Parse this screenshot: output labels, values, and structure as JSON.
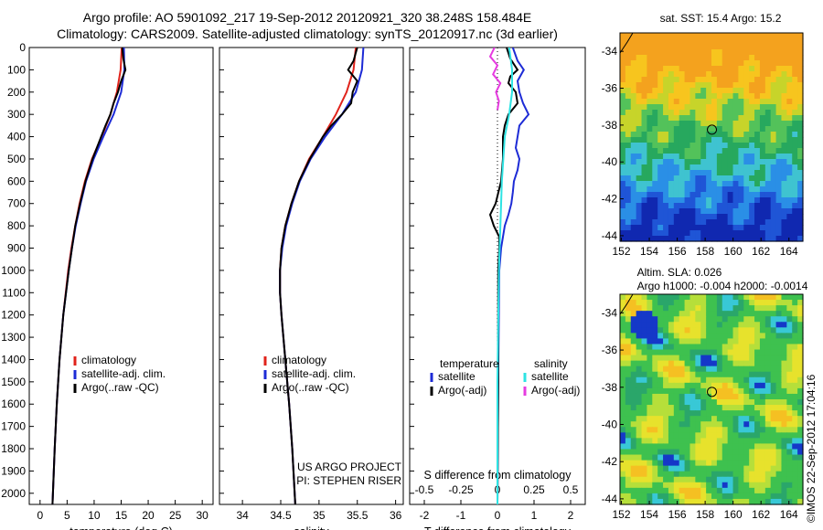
{
  "title_line1": "Argo profile: AO 5901092_217 19-Sep-2012 20120921_320 38.248S 158.484E",
  "title_line2": "Climatology: CARS2009. Satellite-adjusted climatology: synTS_20120917.nc (3d earlier)",
  "stamp": "©IMOS 22-Sep-2012 17:04:16",
  "colors": {
    "climatology": "#e0231b",
    "satellite": "#1d2bd6",
    "argo": "#000000",
    "sal_satellite": "#2ee3e3",
    "sal_argo": "#e63be0"
  },
  "chart_data": [
    {
      "type": "line",
      "xlabel": "temperature (deg C)",
      "ylim": [
        2050,
        0
      ],
      "xlim": [
        -2,
        32
      ],
      "xticks": [
        "0",
        "5",
        "10",
        "15",
        "20",
        "25",
        "30"
      ],
      "yticks": [
        "0",
        "100",
        "200",
        "300",
        "400",
        "500",
        "600",
        "700",
        "800",
        "900",
        "1000",
        "1100",
        "1200",
        "1300",
        "1400",
        "1500",
        "1600",
        "1700",
        "1800",
        "1900",
        "2000"
      ],
      "legend": [
        "climatology",
        "satellite-adj. clim.",
        "Argo(..raw -QC)"
      ],
      "series": [
        {
          "name": "climatology",
          "y": [
            0,
            100,
            200,
            300,
            400,
            500,
            600,
            700,
            800,
            900,
            1000,
            1200,
            1400,
            1600,
            1800,
            2050
          ],
          "x": [
            15.1,
            14.9,
            14.2,
            13.0,
            11.4,
            9.6,
            8.3,
            7.3,
            6.5,
            5.8,
            5.2,
            4.3,
            3.6,
            3.1,
            2.7,
            2.3
          ]
        },
        {
          "name": "satellite-adj. clim.",
          "y": [
            0,
            100,
            200,
            300,
            400,
            500,
            600,
            700,
            800,
            900,
            1000,
            1200,
            1400,
            1600,
            1800,
            2050
          ],
          "x": [
            15.5,
            15.6,
            15.0,
            13.6,
            11.7,
            9.9,
            8.5,
            7.5,
            6.6,
            5.9,
            5.3,
            4.3,
            3.6,
            3.1,
            2.7,
            2.3
          ]
        },
        {
          "name": "Argo(..raw -QC)",
          "y": [
            0,
            50,
            100,
            150,
            200,
            250,
            300,
            350,
            400,
            500,
            600,
            700,
            800,
            900,
            1000,
            1200,
            1400,
            1600,
            1800,
            2050
          ],
          "x": [
            15.2,
            15.4,
            15.8,
            15.0,
            14.4,
            13.6,
            13.0,
            12.1,
            11.3,
            9.7,
            8.4,
            7.4,
            6.5,
            5.9,
            5.3,
            4.3,
            3.6,
            3.1,
            2.7,
            2.3
          ]
        }
      ]
    },
    {
      "type": "line",
      "xlabel": "salinity",
      "ylim": [
        2050,
        0
      ],
      "xlim": [
        33.7,
        36.1
      ],
      "xticks": [
        "34",
        "34.5",
        "35",
        "35.5",
        "36"
      ],
      "legend": [
        "climatology",
        "satellite-adj. clim.",
        "Argo(..raw -QC)"
      ],
      "annotation": [
        "US ARGO PROJECT",
        "PI: STEPHEN RISER"
      ],
      "series": [
        {
          "name": "climatology",
          "y": [
            0,
            100,
            200,
            300,
            400,
            500,
            600,
            700,
            800,
            900,
            1000,
            1100,
            1200,
            1400,
            1600,
            1800,
            2050
          ],
          "x": [
            35.48,
            35.45,
            35.36,
            35.22,
            35.05,
            34.87,
            34.74,
            34.64,
            34.56,
            34.51,
            34.49,
            34.49,
            34.51,
            34.56,
            34.61,
            34.65,
            34.69
          ]
        },
        {
          "name": "satellite-adj. clim.",
          "y": [
            0,
            100,
            200,
            300,
            400,
            500,
            600,
            700,
            800,
            900,
            1000,
            1100,
            1200,
            1400,
            1600,
            1800,
            2050
          ],
          "x": [
            35.58,
            35.56,
            35.48,
            35.3,
            35.08,
            34.89,
            34.75,
            34.65,
            34.57,
            34.52,
            34.49,
            34.49,
            34.51,
            34.56,
            34.61,
            34.65,
            34.69
          ]
        },
        {
          "name": "Argo(..raw -QC)",
          "y": [
            0,
            60,
            100,
            150,
            200,
            250,
            300,
            350,
            400,
            500,
            600,
            700,
            800,
            900,
            1000,
            1100,
            1200,
            1400,
            1600,
            1800,
            2050
          ],
          "x": [
            35.5,
            35.45,
            35.38,
            35.5,
            35.44,
            35.42,
            35.3,
            35.16,
            35.05,
            34.88,
            34.74,
            34.64,
            34.56,
            34.51,
            34.49,
            34.49,
            34.51,
            34.56,
            34.61,
            34.65,
            34.69
          ]
        }
      ]
    },
    {
      "type": "line",
      "xlabel": "T difference from climatology",
      "xlabel_top": "S difference from climatology",
      "ylim": [
        2050,
        0
      ],
      "xlim": [
        -2.4,
        2.4
      ],
      "xticks": [
        "-2",
        "-1",
        "0",
        "1",
        "2"
      ],
      "xticks_top": [
        "-0.5",
        "-0.25",
        "0",
        "0.25",
        "0.5"
      ],
      "legend": {
        "headers": [
          "temperature",
          "salinity"
        ],
        "items": [
          "satellite",
          "Argo(-adj)",
          "satellite",
          "Argo(-adj)"
        ]
      },
      "series": [
        {
          "name": "temperature satellite",
          "y": [
            0,
            60,
            100,
            150,
            200,
            250,
            300,
            350,
            400,
            450,
            500,
            550,
            600,
            650,
            700,
            750,
            800,
            900,
            1000,
            1500,
            2050
          ],
          "x": [
            0.42,
            0.55,
            0.72,
            0.55,
            0.6,
            0.7,
            0.85,
            0.6,
            0.55,
            0.5,
            0.6,
            0.55,
            0.45,
            0.42,
            0.38,
            0.3,
            0.2,
            0.1,
            0.05,
            0.02,
            0.0
          ]
        },
        {
          "name": "temperature Argo(-adj)",
          "y": [
            0,
            50,
            100,
            130,
            160,
            200,
            250,
            300,
            350,
            400,
            500,
            600,
            700,
            750,
            800,
            850,
            900,
            1000,
            1500,
            2050
          ],
          "x": [
            0.25,
            0.35,
            0.55,
            0.35,
            0.3,
            0.5,
            0.55,
            0.3,
            0.2,
            0.15,
            0.15,
            0.1,
            -0.05,
            -0.2,
            -0.1,
            0.05,
            0.05,
            0.02,
            0.02,
            0.0
          ]
        },
        {
          "name": "salinity satellite",
          "y": [
            0,
            100,
            200,
            300,
            400,
            600,
            800,
            1000,
            1500,
            2050
          ],
          "x": [
            0.08,
            0.1,
            0.1,
            0.08,
            0.05,
            0.03,
            0.02,
            0.01,
            0.0,
            0.0
          ]
        },
        {
          "name": "salinity Argo(-adj)",
          "y": [
            0,
            40,
            80,
            120,
            160,
            200,
            240,
            280
          ],
          "x": [
            -0.02,
            -0.05,
            0.0,
            -0.03,
            0.02,
            -0.01,
            0.01,
            0.0
          ]
        }
      ]
    },
    {
      "type": "heatmap",
      "title": "sat. SST: 15.4 Argo: 15.2",
      "xticks": [
        "152",
        "154",
        "156",
        "158",
        "160",
        "162",
        "164"
      ],
      "yticks": [
        "-34",
        "-36",
        "-38",
        "-40",
        "-42",
        "-44"
      ],
      "marker": {
        "lon": 158.484,
        "lat": -38.248
      }
    },
    {
      "type": "heatmap",
      "title_line1": "Altim. SLA: 0.026",
      "title_line2": "Argo h1000: -0.004 h2000: -0.0014",
      "xticks": [
        "152",
        "154",
        "156",
        "158",
        "160",
        "162",
        "164"
      ],
      "yticks": [
        "-34",
        "-36",
        "-38",
        "-40",
        "-42",
        "-44"
      ],
      "marker": {
        "lon": 158.484,
        "lat": -38.248
      }
    }
  ]
}
